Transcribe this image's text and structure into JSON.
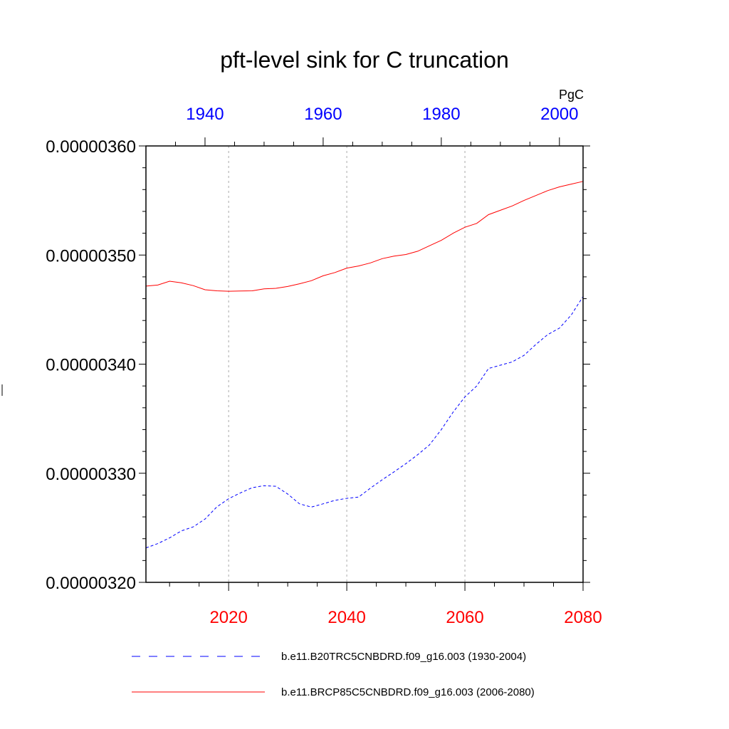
{
  "chart_data": {
    "type": "line",
    "title": "pft-level sink for C truncation",
    "units": "PgC",
    "ylabel": "",
    "ylim": [
      3.2e-06,
      3.6e-06
    ],
    "yticks": [
      3.2e-06,
      3.3e-06,
      3.4e-06,
      3.5e-06,
      3.6e-06
    ],
    "ytick_labels": [
      "0.00000320",
      "0.00000330",
      "0.00000340",
      "0.00000350",
      "0.00000360"
    ],
    "grid": "vertical dotted at bottom-axis major ticks",
    "bottom_axis": {
      "color": "#ff0000",
      "range": [
        2006,
        2080
      ],
      "ticks": [
        2020,
        2040,
        2060,
        2080
      ],
      "tick_labels": [
        "2020",
        "2040",
        "2060",
        "2080"
      ]
    },
    "top_axis": {
      "color": "#0000ff",
      "range": [
        1930,
        2004
      ],
      "ticks": [
        1940,
        1960,
        1980,
        2000
      ],
      "tick_labels": [
        "1940",
        "1960",
        "1980",
        "2000"
      ]
    },
    "legend_position": "bottom",
    "series": [
      {
        "name": "b.e11.B20TRC5CNBDRD.f09_g16.003 (1930-2004)",
        "axis": "top",
        "color": "#0000ff",
        "style": "dashed",
        "x": [
          1930,
          1932,
          1934,
          1936,
          1938,
          1940,
          1942,
          1944,
          1946,
          1948,
          1950,
          1952,
          1954,
          1956,
          1958,
          1960,
          1962,
          1964,
          1966,
          1968,
          1970,
          1972,
          1974,
          1976,
          1978,
          1980,
          1982,
          1984,
          1986,
          1988,
          1990,
          1992,
          1994,
          1996,
          1998,
          2000,
          2002,
          2004
        ],
        "y": [
          3.2316e-06,
          3.2355e-06,
          3.2408e-06,
          3.2472e-06,
          3.2508e-06,
          3.258e-06,
          3.2692e-06,
          3.2767e-06,
          3.282e-06,
          3.2868e-06,
          3.2886e-06,
          3.288e-06,
          3.281e-06,
          3.272e-06,
          3.269e-06,
          3.272e-06,
          3.2752e-06,
          3.277e-06,
          3.2782e-06,
          3.2863e-06,
          3.294e-06,
          3.3013e-06,
          3.3088e-06,
          3.317e-06,
          3.326e-06,
          3.34e-06,
          3.356e-06,
          3.37e-06,
          3.38e-06,
          3.396e-06,
          3.399e-06,
          3.402e-06,
          3.408e-06,
          3.418e-06,
          3.427e-06,
          3.433e-06,
          3.445e-06,
          3.462e-06
        ]
      },
      {
        "name": "b.e11.BRCP85C5CNBDRD.f09_g16.003 (2006-2080)",
        "axis": "bottom",
        "color": "#ff0000",
        "style": "solid",
        "x": [
          2006,
          2008,
          2010,
          2012,
          2014,
          2016,
          2018,
          2020,
          2022,
          2024,
          2026,
          2028,
          2030,
          2032,
          2034,
          2036,
          2038,
          2040,
          2042,
          2044,
          2046,
          2048,
          2050,
          2052,
          2054,
          2056,
          2058,
          2060,
          2062,
          2064,
          2066,
          2068,
          2070,
          2072,
          2074,
          2076,
          2078,
          2080
        ],
        "y": [
          3.4715e-06,
          3.4725e-06,
          3.476e-06,
          3.4745e-06,
          3.472e-06,
          3.4682e-06,
          3.4672e-06,
          3.4668e-06,
          3.467e-06,
          3.4672e-06,
          3.469e-06,
          3.4695e-06,
          3.4712e-06,
          3.4737e-06,
          3.4765e-06,
          3.481e-06,
          3.484e-06,
          3.488e-06,
          3.49e-06,
          3.4928e-06,
          3.4967e-06,
          3.499e-06,
          3.5005e-06,
          3.5035e-06,
          3.5085e-06,
          3.5135e-06,
          3.52e-06,
          3.5255e-06,
          3.529e-06,
          3.537e-06,
          3.541e-06,
          3.545e-06,
          3.55e-06,
          3.5545e-06,
          3.559e-06,
          3.5625e-06,
          3.565e-06,
          3.5675e-06
        ]
      }
    ]
  }
}
